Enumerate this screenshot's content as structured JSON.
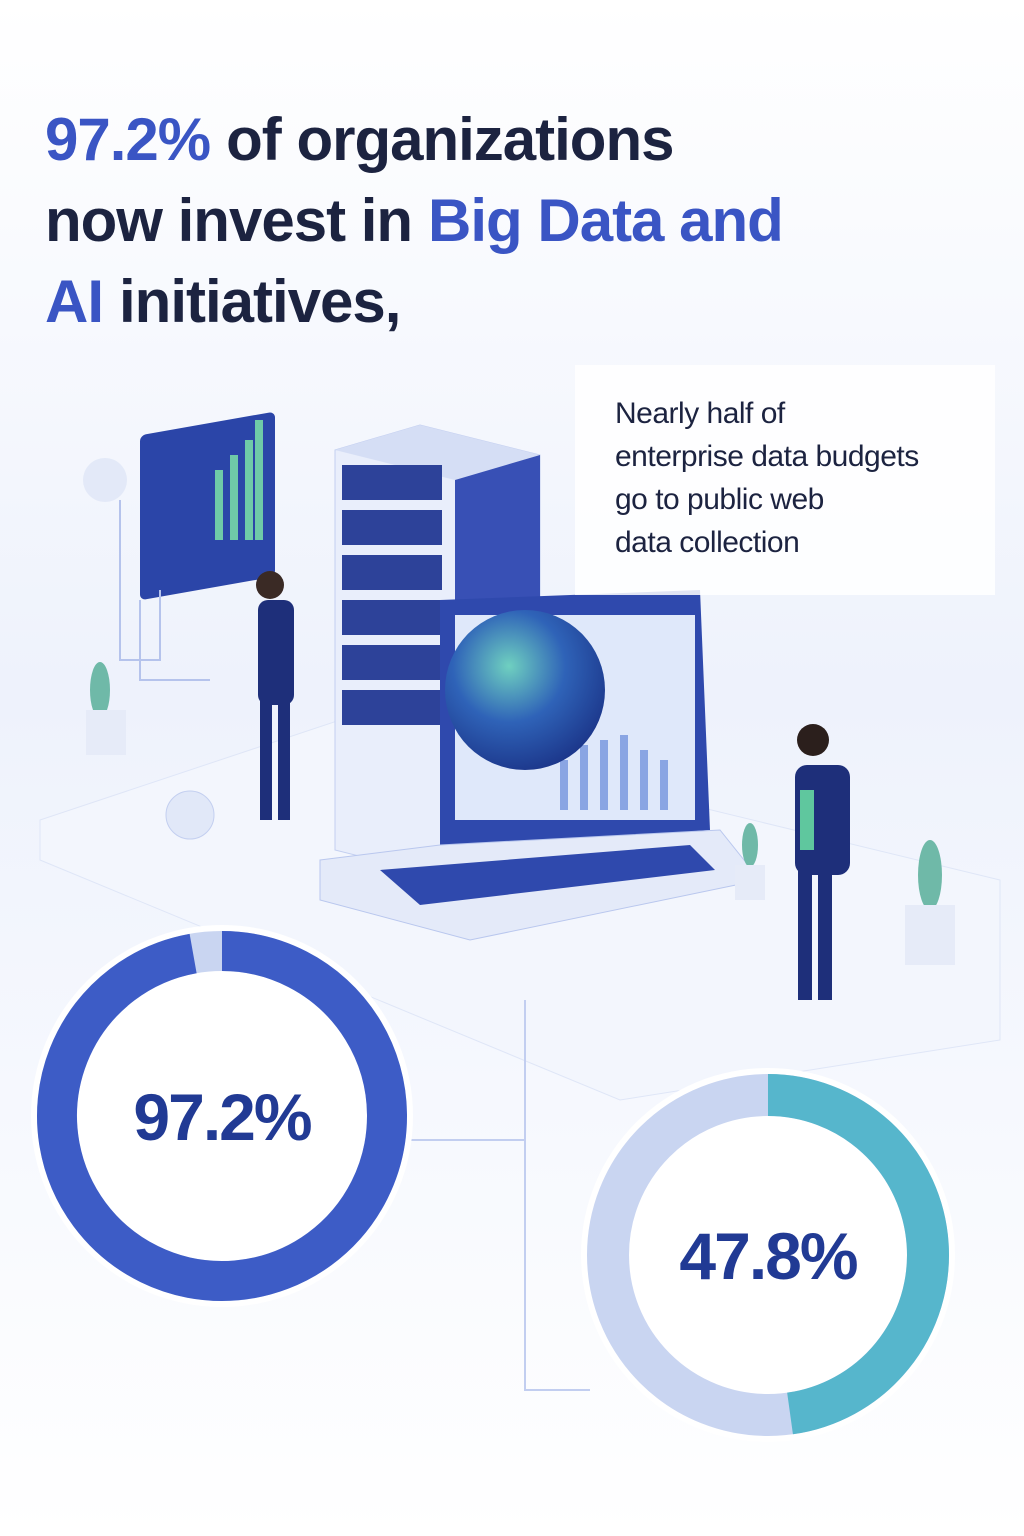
{
  "headline": {
    "lines": [
      [
        {
          "text": "97.2%",
          "color": "#3a55c4"
        },
        {
          "text": "of organizations",
          "color": "#1c2340"
        }
      ],
      [
        {
          "text": "now invest in",
          "color": "#1c2340"
        },
        {
          "text": "Big Data and",
          "color": "#3a55c4"
        }
      ],
      [
        {
          "text": "AI",
          "color": "#3a55c4"
        },
        {
          "text": "initiatives,",
          "color": "#1c2340"
        }
      ]
    ]
  },
  "callout": {
    "lines": [
      "Nearly half of",
      "enterprise data budgets",
      "go to public web",
      "data collection"
    ]
  },
  "chart_data": [
    {
      "type": "donut",
      "values": [
        97.2
      ],
      "value_labels": [
        "97.2%"
      ],
      "color": "#3d5cc6",
      "rest_color": "#c9d5f1"
    },
    {
      "type": "donut",
      "values": [
        47.8
      ],
      "value_labels": [
        "47.8%"
      ],
      "color": "#56b6cc",
      "rest_color": "#c9d5f1"
    }
  ]
}
